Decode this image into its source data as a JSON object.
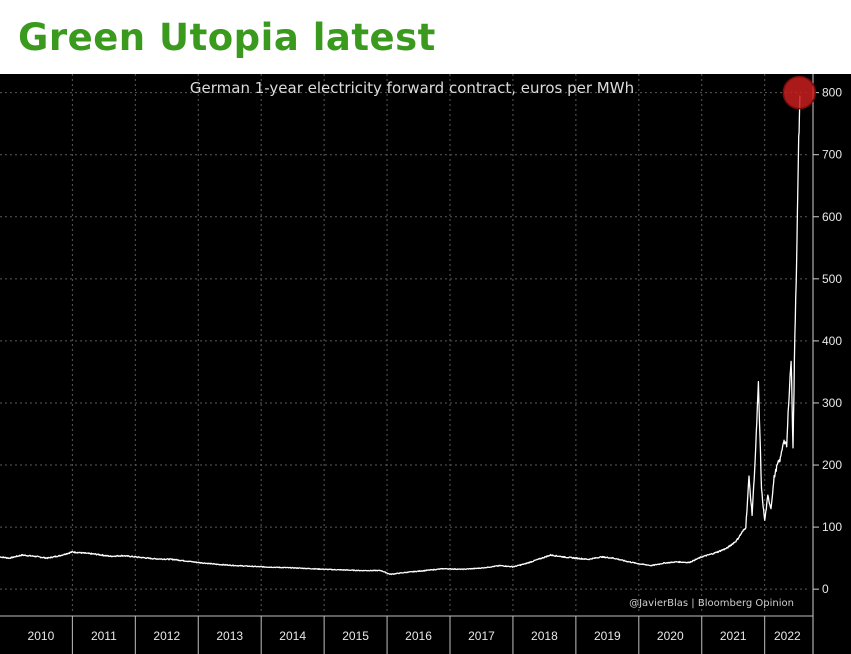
{
  "header": {
    "title": "Green Utopia latest"
  },
  "chart_data": {
    "type": "line",
    "title": "German 1-year electricity forward contract, euros per MWh",
    "xlabel": "",
    "ylabel": "",
    "source": "@JavierBlas | Bloomberg Opinion",
    "ylim": [
      -40,
      830
    ],
    "xlim": [
      2009.85,
      2022.72
    ],
    "yticks": [
      0,
      100,
      200,
      300,
      400,
      500,
      600,
      700,
      800
    ],
    "ytick_labels": [
      "0",
      "100",
      "200",
      "300",
      "400",
      "500",
      "600",
      "700",
      "800"
    ],
    "year_labels": [
      "2010",
      "2011",
      "2012",
      "2013",
      "2014",
      "2015",
      "2016",
      "2017",
      "2018",
      "2019",
      "2020",
      "2021",
      "2022"
    ],
    "grid": true,
    "line_color": "#ffffff",
    "highlight_color": "#c81e1e",
    "highlight_point": [
      2022.55,
      800
    ],
    "series": [
      {
        "x": [
          2009.85,
          2010.0,
          2010.2,
          2010.4,
          2010.6,
          2010.8,
          2011.0,
          2011.2,
          2011.4,
          2011.6,
          2011.8,
          2012.0,
          2012.3,
          2012.6,
          2013.0,
          2013.3,
          2013.6,
          2014.0,
          2014.3,
          2014.6,
          2015.0,
          2015.3,
          2015.6,
          2015.9,
          2016.05,
          2016.3,
          2016.6,
          2016.9,
          2017.2,
          2017.5,
          2017.8,
          2018.0,
          2018.2,
          2018.4,
          2018.6,
          2018.8,
          2019.0,
          2019.2,
          2019.4,
          2019.6,
          2019.8,
          2020.0,
          2020.2,
          2020.4,
          2020.6,
          2020.8,
          2021.0,
          2021.2,
          2021.4,
          2021.55,
          2021.7,
          2021.75,
          2021.8,
          2021.85,
          2021.9,
          2021.95,
          2022.0,
          2022.05,
          2022.1,
          2022.15,
          2022.2,
          2022.25,
          2022.3,
          2022.35,
          2022.38,
          2022.42,
          2022.45,
          2022.48,
          2022.5,
          2022.52,
          2022.54,
          2022.56
        ],
        "y": [
          52,
          50,
          55,
          53,
          50,
          54,
          60,
          58,
          56,
          53,
          54,
          52,
          49,
          48,
          43,
          40,
          38,
          36,
          35,
          34,
          32,
          31,
          30,
          30,
          24,
          27,
          30,
          33,
          32,
          34,
          38,
          36,
          41,
          48,
          55,
          52,
          50,
          48,
          52,
          50,
          45,
          41,
          38,
          42,
          44,
          43,
          52,
          58,
          66,
          78,
          100,
          180,
          120,
          210,
          330,
          160,
          110,
          150,
          130,
          180,
          200,
          210,
          240,
          230,
          300,
          370,
          230,
          410,
          500,
          600,
          720,
          795
        ]
      }
    ]
  }
}
